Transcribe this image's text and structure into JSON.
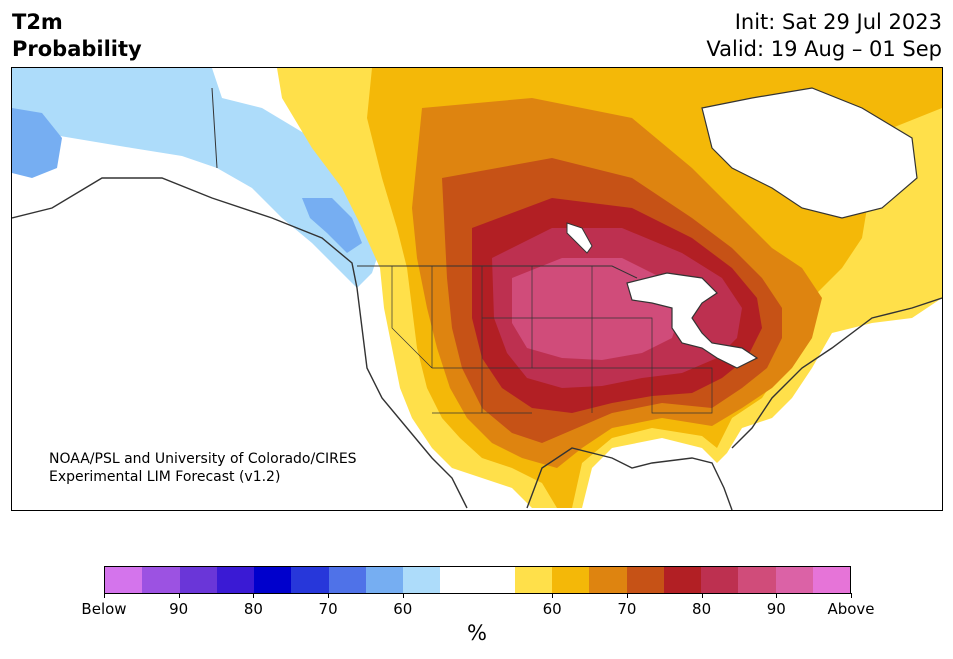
{
  "header": {
    "variable": "T2m",
    "kind": "Probability",
    "init": "Init: Sat 29 Jul 2023",
    "valid": "Valid: 19 Aug – 01 Sep"
  },
  "credit": {
    "line1": "NOAA/PSL and University of Colorado/CIRES",
    "line2": "Experimental LIM Forecast (v1.2)"
  },
  "colorbar": {
    "unit": "%",
    "colors": [
      "#d474ec",
      "#9c52e2",
      "#6a36d8",
      "#3a1ad4",
      "#0000cc",
      "#2737da",
      "#4f72e8",
      "#76aef2",
      "#addcfa",
      "#ffffff",
      "#ffffff",
      "#ffe04a",
      "#f4b808",
      "#de8410",
      "#c65216",
      "#b21f24",
      "#bd3050",
      "#d04c7a",
      "#db62a6",
      "#e674d8"
    ],
    "ticks": [
      "Below",
      "90",
      "80",
      "70",
      "60",
      "60",
      "70",
      "80",
      "90",
      "Above"
    ],
    "tick_positions": [
      0,
      0.1,
      0.2,
      0.3,
      0.4,
      0.6,
      0.7,
      0.8,
      0.9,
      1.0
    ]
  },
  "map": {
    "region": "North America",
    "colors": {
      "cold_light": "#addcfa",
      "cold_mid": "#76aef2",
      "warm_60": "#ffe04a",
      "warm_65": "#f4b808",
      "warm_70": "#de8410",
      "warm_75": "#c65216",
      "warm_80": "#b21f24",
      "warm_85": "#bd3050",
      "warm_90": "#d04c7a",
      "lakes": "#ffffff",
      "borders": "#333333"
    }
  }
}
